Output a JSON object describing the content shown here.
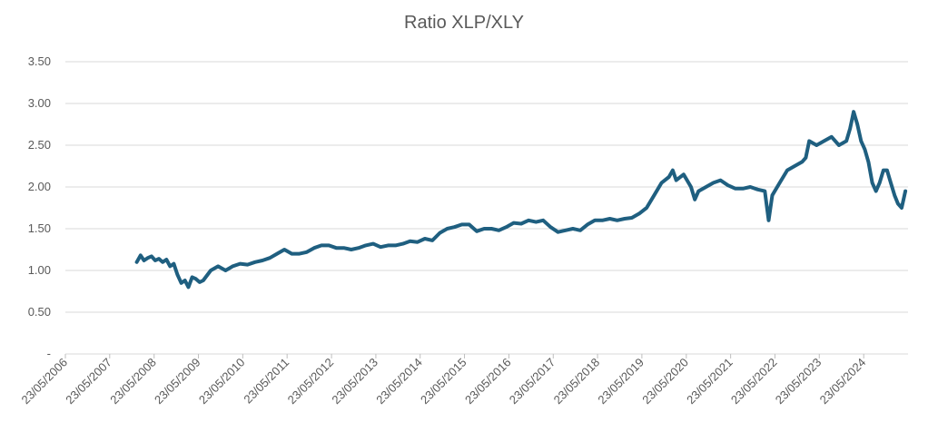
{
  "chart_data": {
    "type": "line",
    "title": "Ratio XLP/XLY",
    "xlabel": "",
    "ylabel": "",
    "ylim": [
      0,
      3.5
    ],
    "y_ticks": [
      {
        "value": 0,
        "label": "-"
      },
      {
        "value": 0.5,
        "label": "0.50"
      },
      {
        "value": 1.0,
        "label": "1.00"
      },
      {
        "value": 1.5,
        "label": "1.50"
      },
      {
        "value": 2.0,
        "label": "2.00"
      },
      {
        "value": 2.5,
        "label": "2.50"
      },
      {
        "value": 3.0,
        "label": "3.00"
      },
      {
        "value": 3.5,
        "label": "3.50"
      }
    ],
    "x_ticks": [
      "23/05/2006",
      "23/05/2007",
      "23/05/2008",
      "23/05/2009",
      "23/05/2010",
      "23/05/2011",
      "23/05/2012",
      "23/05/2013",
      "23/05/2014",
      "23/05/2015",
      "23/05/2016",
      "23/05/2017",
      "23/05/2018",
      "23/05/2019",
      "23/05/2020",
      "23/05/2021",
      "23/05/2022",
      "23/05/2023",
      "23/05/2024"
    ],
    "xlim": [
      "23/05/2006",
      "23/05/2025"
    ],
    "grid": true,
    "legend": "none",
    "line_color": "#1f5f80",
    "series": [
      {
        "points": [
          [
            "01/01/2008",
            1.1
          ],
          [
            "01/02/2008",
            1.18
          ],
          [
            "01/03/2008",
            1.12
          ],
          [
            "01/04/2008",
            1.15
          ],
          [
            "01/05/2008",
            1.17
          ],
          [
            "01/06/2008",
            1.12
          ],
          [
            "01/07/2008",
            1.14
          ],
          [
            "01/08/2008",
            1.1
          ],
          [
            "01/09/2008",
            1.13
          ],
          [
            "01/10/2008",
            1.05
          ],
          [
            "01/11/2008",
            1.08
          ],
          [
            "01/12/2008",
            0.95
          ],
          [
            "01/01/2009",
            0.85
          ],
          [
            "01/02/2009",
            0.88
          ],
          [
            "01/03/2009",
            0.8
          ],
          [
            "01/04/2009",
            0.92
          ],
          [
            "01/05/2009",
            0.9
          ],
          [
            "01/06/2009",
            0.86
          ],
          [
            "01/07/2009",
            0.88
          ],
          [
            "01/09/2009",
            1.0
          ],
          [
            "01/11/2009",
            1.05
          ],
          [
            "01/01/2010",
            1.0
          ],
          [
            "01/03/2010",
            1.05
          ],
          [
            "01/05/2010",
            1.08
          ],
          [
            "01/07/2010",
            1.07
          ],
          [
            "01/09/2010",
            1.1
          ],
          [
            "01/11/2010",
            1.12
          ],
          [
            "01/01/2011",
            1.15
          ],
          [
            "01/03/2011",
            1.2
          ],
          [
            "01/05/2011",
            1.25
          ],
          [
            "01/07/2011",
            1.2
          ],
          [
            "01/09/2011",
            1.2
          ],
          [
            "01/11/2011",
            1.22
          ],
          [
            "01/01/2012",
            1.27
          ],
          [
            "01/03/2012",
            1.3
          ],
          [
            "01/05/2012",
            1.3
          ],
          [
            "01/07/2012",
            1.27
          ],
          [
            "01/09/2012",
            1.27
          ],
          [
            "01/11/2012",
            1.25
          ],
          [
            "01/01/2013",
            1.27
          ],
          [
            "01/03/2013",
            1.3
          ],
          [
            "01/05/2013",
            1.32
          ],
          [
            "01/07/2013",
            1.28
          ],
          [
            "01/09/2013",
            1.3
          ],
          [
            "01/11/2013",
            1.3
          ],
          [
            "01/01/2014",
            1.32
          ],
          [
            "01/03/2014",
            1.35
          ],
          [
            "01/05/2014",
            1.34
          ],
          [
            "01/07/2014",
            1.38
          ],
          [
            "01/09/2014",
            1.36
          ],
          [
            "01/11/2014",
            1.45
          ],
          [
            "01/01/2015",
            1.5
          ],
          [
            "01/03/2015",
            1.52
          ],
          [
            "01/05/2015",
            1.55
          ],
          [
            "01/07/2015",
            1.55
          ],
          [
            "01/09/2015",
            1.47
          ],
          [
            "01/11/2015",
            1.5
          ],
          [
            "01/01/2016",
            1.5
          ],
          [
            "01/03/2016",
            1.48
          ],
          [
            "01/05/2016",
            1.52
          ],
          [
            "01/07/2016",
            1.57
          ],
          [
            "01/09/2016",
            1.56
          ],
          [
            "01/11/2016",
            1.6
          ],
          [
            "01/01/2017",
            1.58
          ],
          [
            "01/03/2017",
            1.6
          ],
          [
            "01/05/2017",
            1.52
          ],
          [
            "01/07/2017",
            1.46
          ],
          [
            "01/09/2017",
            1.48
          ],
          [
            "01/11/2017",
            1.5
          ],
          [
            "01/01/2018",
            1.48
          ],
          [
            "01/03/2018",
            1.55
          ],
          [
            "01/05/2018",
            1.6
          ],
          [
            "01/07/2018",
            1.6
          ],
          [
            "01/09/2018",
            1.62
          ],
          [
            "01/11/2018",
            1.6
          ],
          [
            "01/01/2019",
            1.62
          ],
          [
            "01/03/2019",
            1.63
          ],
          [
            "01/05/2019",
            1.68
          ],
          [
            "01/07/2019",
            1.75
          ],
          [
            "01/09/2019",
            1.9
          ],
          [
            "01/11/2019",
            2.05
          ],
          [
            "01/01/2020",
            2.12
          ],
          [
            "01/02/2020",
            2.2
          ],
          [
            "01/03/2020",
            2.08
          ],
          [
            "01/05/2020",
            2.15
          ],
          [
            "01/07/2020",
            2.0
          ],
          [
            "01/08/2020",
            1.85
          ],
          [
            "01/09/2020",
            1.95
          ],
          [
            "01/11/2020",
            2.0
          ],
          [
            "01/01/2021",
            2.05
          ],
          [
            "01/03/2021",
            2.08
          ],
          [
            "01/05/2021",
            2.02
          ],
          [
            "01/07/2021",
            1.98
          ],
          [
            "01/09/2021",
            1.98
          ],
          [
            "01/11/2021",
            2.0
          ],
          [
            "01/01/2022",
            1.97
          ],
          [
            "01/03/2022",
            1.95
          ],
          [
            "01/04/2022",
            1.6
          ],
          [
            "01/05/2022",
            1.9
          ],
          [
            "01/07/2022",
            2.05
          ],
          [
            "01/09/2022",
            2.2
          ],
          [
            "01/11/2022",
            2.25
          ],
          [
            "01/01/2023",
            2.3
          ],
          [
            "01/02/2023",
            2.35
          ],
          [
            "01/03/2023",
            2.55
          ],
          [
            "01/05/2023",
            2.5
          ],
          [
            "01/07/2023",
            2.55
          ],
          [
            "01/09/2023",
            2.6
          ],
          [
            "01/11/2023",
            2.5
          ],
          [
            "01/01/2024",
            2.55
          ],
          [
            "01/02/2024",
            2.7
          ],
          [
            "01/03/2024",
            2.9
          ],
          [
            "01/04/2024",
            2.75
          ],
          [
            "01/05/2024",
            2.55
          ],
          [
            "01/06/2024",
            2.45
          ],
          [
            "01/07/2024",
            2.3
          ],
          [
            "01/08/2024",
            2.05
          ],
          [
            "01/09/2024",
            1.95
          ],
          [
            "01/10/2024",
            2.05
          ],
          [
            "01/11/2024",
            2.2
          ],
          [
            "01/12/2024",
            2.2
          ],
          [
            "01/01/2025",
            2.05
          ],
          [
            "01/02/2025",
            1.9
          ],
          [
            "01/03/2025",
            1.8
          ],
          [
            "01/04/2025",
            1.75
          ],
          [
            "01/05/2025",
            1.95
          ]
        ]
      }
    ]
  }
}
